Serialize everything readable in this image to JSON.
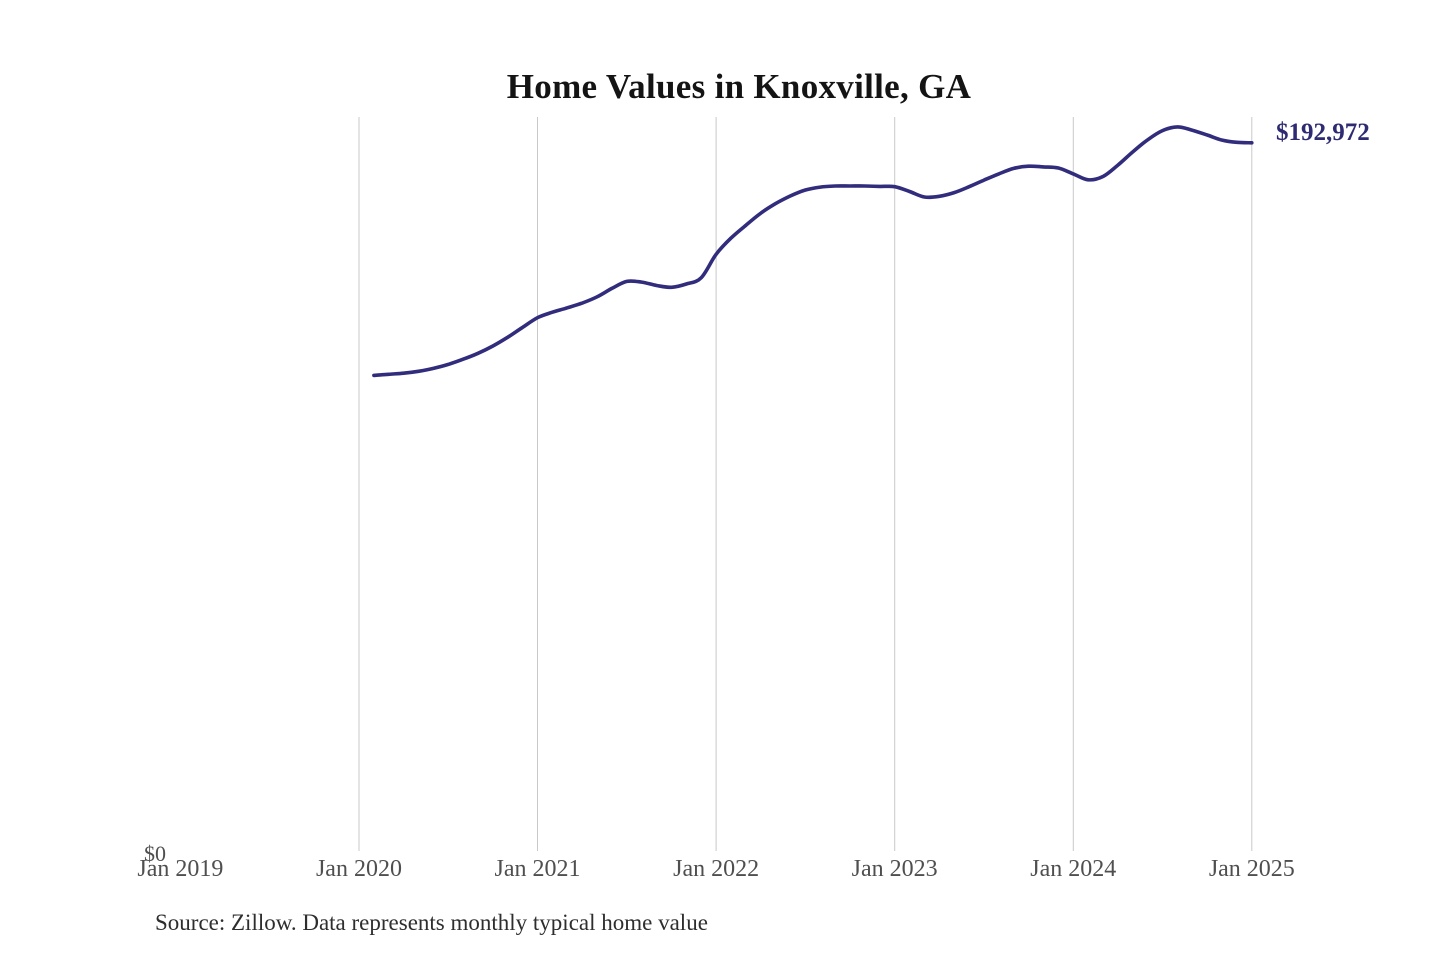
{
  "chart_data": {
    "type": "line",
    "title": "Home Values in Knoxville, GA",
    "source_note": "Source: Zillow. Data represents monthly typical home value",
    "end_label": "$192,972",
    "end_value": 192972,
    "y_axis": {
      "zero_label": "$0",
      "min": 0,
      "max": 200000,
      "horizontal_gridlines": false
    },
    "x_ticks": [
      {
        "label": "Jan 2019",
        "gridline": false
      },
      {
        "label": "Jan 2020",
        "gridline": true
      },
      {
        "label": "Jan 2021",
        "gridline": true
      },
      {
        "label": "Jan 2022",
        "gridline": true
      },
      {
        "label": "Jan 2023",
        "gridline": true
      },
      {
        "label": "Jan 2024",
        "gridline": true
      },
      {
        "label": "Jan 2025",
        "gridline": true
      }
    ],
    "series": [
      {
        "name": "Monthly typical home value",
        "months": [
          "Feb 2020",
          "Mar 2020",
          "Apr 2020",
          "May 2020",
          "Jun 2020",
          "Jul 2020",
          "Aug 2020",
          "Sep 2020",
          "Oct 2020",
          "Nov 2020",
          "Dec 2020",
          "Jan 2021",
          "Feb 2021",
          "Mar 2021",
          "Apr 2021",
          "May 2021",
          "Jun 2021",
          "Jul 2021",
          "Aug 2021",
          "Sep 2021",
          "Oct 2021",
          "Nov 2021",
          "Dec 2021",
          "Jan 2022",
          "Feb 2022",
          "Mar 2022",
          "Apr 2022",
          "May 2022",
          "Jun 2022",
          "Jul 2022",
          "Aug 2022",
          "Sep 2022",
          "Oct 2022",
          "Nov 2022",
          "Dec 2022",
          "Jan 2023",
          "Feb 2023",
          "Mar 2023",
          "Apr 2023",
          "May 2023",
          "Jun 2023",
          "Jul 2023",
          "Aug 2023",
          "Sep 2023",
          "Oct 2023",
          "Nov 2023",
          "Dec 2023",
          "Jan 2024",
          "Feb 2024",
          "Mar 2024",
          "Apr 2024",
          "May 2024",
          "Jun 2024",
          "Jul 2024",
          "Aug 2024",
          "Sep 2024",
          "Oct 2024",
          "Nov 2024",
          "Dec 2024",
          "Jan 2025"
        ],
        "values": [
          129600,
          129900,
          130200,
          130700,
          131500,
          132600,
          134000,
          135600,
          137600,
          140000,
          142700,
          145300,
          146800,
          148000,
          149300,
          151000,
          153300,
          155200,
          155000,
          154100,
          153600,
          154500,
          156200,
          162600,
          167000,
          170500,
          173800,
          176400,
          178500,
          180100,
          180900,
          181200,
          181200,
          181200,
          181100,
          181000,
          179700,
          178200,
          178400,
          179400,
          181000,
          182800,
          184500,
          186000,
          186600,
          186400,
          186100,
          184500,
          182900,
          183800,
          186900,
          190500,
          193800,
          196300,
          197300,
          196400,
          195100,
          193700,
          193100,
          192972
        ]
      }
    ],
    "colors": {
      "line": "#312c7c",
      "end_label": "#2e2b72",
      "gridline": "#c9c9c9",
      "title_text": "#141414",
      "tick_text": "#4f4f4f",
      "source_text": "#2e2e2e"
    }
  }
}
